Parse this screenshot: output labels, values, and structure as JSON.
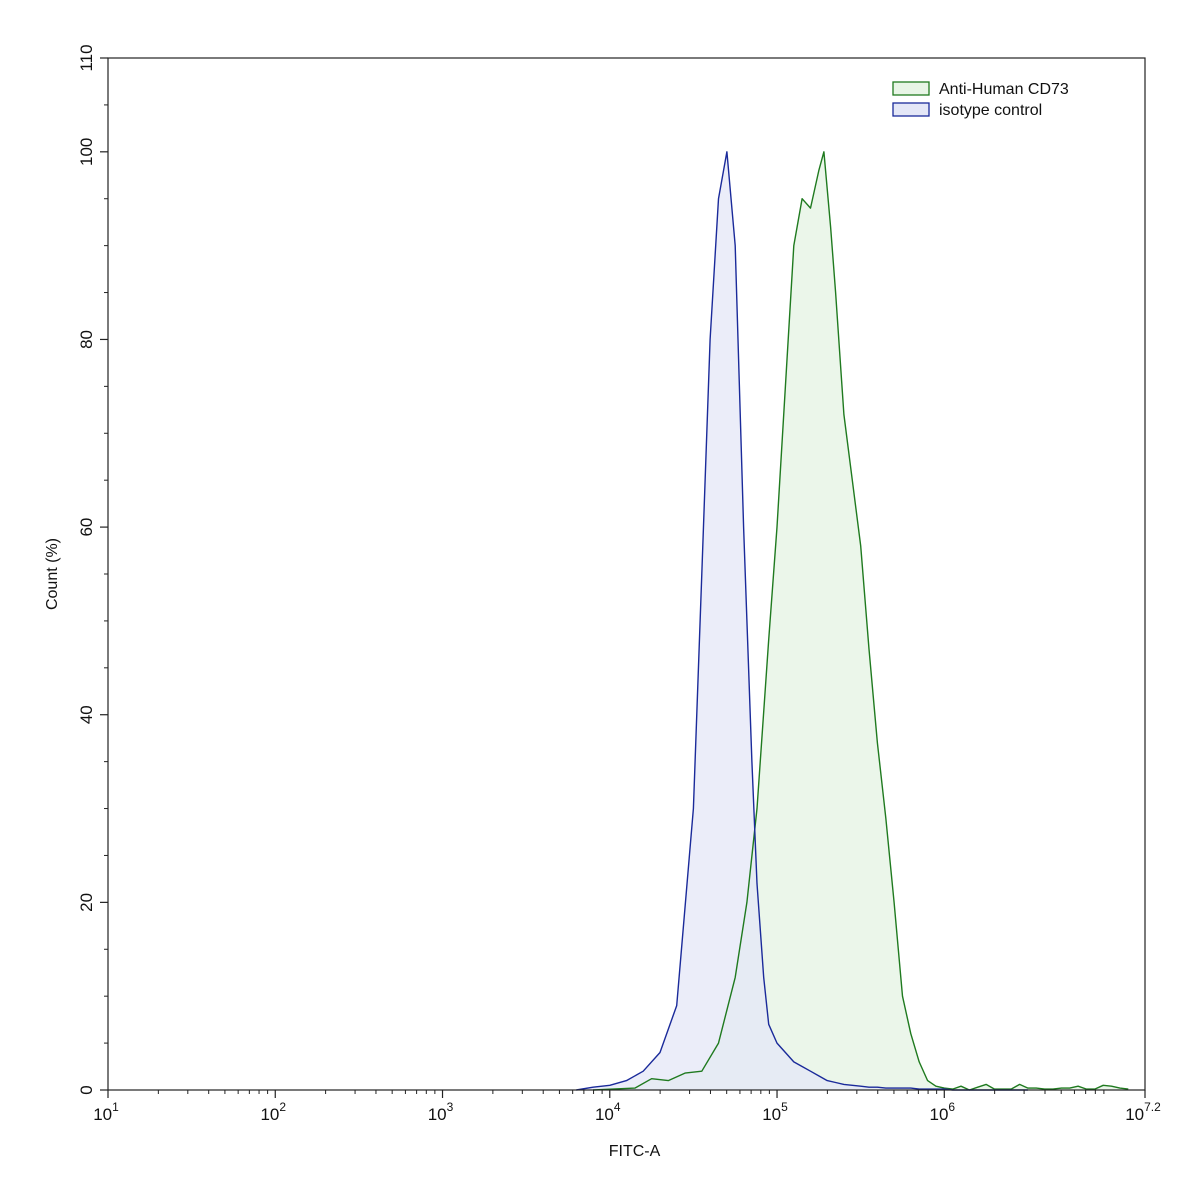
{
  "chart_data": {
    "type": "area",
    "xlabel": "FITC-A",
    "ylabel": "Count  (%)",
    "xscale": "log",
    "xlim_exponent": [
      1,
      7.2
    ],
    "ylim": [
      0,
      110
    ],
    "x_ticks": [
      {
        "base": "10",
        "exp": "1"
      },
      {
        "base": "10",
        "exp": "2"
      },
      {
        "base": "10",
        "exp": "3"
      },
      {
        "base": "10",
        "exp": "4"
      },
      {
        "base": "10",
        "exp": "5"
      },
      {
        "base": "10",
        "exp": "6"
      },
      {
        "base": "10",
        "exp": "7.2"
      }
    ],
    "y_ticks": [
      "0",
      "20",
      "40",
      "60",
      "80",
      "100",
      "110"
    ],
    "grid": false,
    "legend_position": "top-right",
    "series": [
      {
        "name": "Anti-Human CD73",
        "stroke": "#1f7a1f",
        "fill": "#e8f5e6",
        "log10_x": [
          3.9,
          4.15,
          4.25,
          4.35,
          4.45,
          4.55,
          4.65,
          4.75,
          4.82,
          4.88,
          4.95,
          5.0,
          5.05,
          5.1,
          5.15,
          5.2,
          5.25,
          5.28,
          5.32,
          5.35,
          5.4,
          5.45,
          5.5,
          5.55,
          5.6,
          5.65,
          5.7,
          5.75,
          5.8,
          5.85,
          5.9,
          5.95,
          6.0,
          6.05,
          6.1,
          6.15,
          6.2,
          6.25,
          6.3,
          6.35,
          6.4,
          6.45,
          6.5,
          6.55,
          6.6,
          6.65,
          6.7,
          6.75,
          6.8,
          6.85,
          6.9,
          6.95,
          7.0,
          7.05,
          7.1
        ],
        "values": [
          0,
          0.2,
          1.2,
          1.0,
          1.8,
          2.0,
          5.0,
          12.0,
          20.0,
          30.0,
          48.0,
          60.0,
          75.0,
          90.0,
          95.0,
          94.0,
          98.0,
          100.0,
          92.0,
          85.0,
          72.0,
          65.0,
          58.0,
          47.0,
          37.0,
          29.0,
          20.0,
          10.0,
          6.0,
          3.0,
          1.0,
          0.4,
          0.2,
          0.1,
          0.4,
          0.0,
          0.3,
          0.6,
          0.1,
          0.1,
          0.1,
          0.6,
          0.2,
          0.2,
          0.1,
          0.1,
          0.2,
          0.2,
          0.4,
          0.1,
          0.1,
          0.5,
          0.4,
          0.2,
          0.1
        ]
      },
      {
        "name": "isotype control",
        "stroke": "#1a2a9a",
        "fill": "#e4e7f7",
        "log10_x": [
          3.8,
          3.9,
          4.0,
          4.1,
          4.2,
          4.3,
          4.4,
          4.5,
          4.55,
          4.6,
          4.65,
          4.7,
          4.75,
          4.8,
          4.85,
          4.88,
          4.92,
          4.95,
          5.0,
          5.05,
          5.1,
          5.15,
          5.2,
          5.25,
          5.3,
          5.35,
          5.4,
          5.45,
          5.5,
          5.55,
          5.6,
          5.65,
          5.7,
          5.75,
          5.8,
          5.85,
          5.9,
          5.95,
          6.0,
          6.05,
          6.1,
          6.15,
          6.2,
          6.3,
          6.4,
          6.5
        ],
        "values": [
          0,
          0.3,
          0.5,
          1.0,
          2.0,
          4.0,
          9.0,
          30.0,
          55.0,
          80.0,
          95.0,
          100.0,
          90.0,
          60.0,
          35.0,
          22.0,
          12.0,
          7.0,
          5.0,
          4.0,
          3.0,
          2.5,
          2.0,
          1.5,
          1.0,
          0.8,
          0.6,
          0.5,
          0.4,
          0.3,
          0.3,
          0.2,
          0.2,
          0.2,
          0.2,
          0.1,
          0.1,
          0.1,
          0.1,
          0.0,
          0.0,
          0.0,
          0.0,
          0.0,
          0.0,
          0.0
        ]
      }
    ]
  }
}
